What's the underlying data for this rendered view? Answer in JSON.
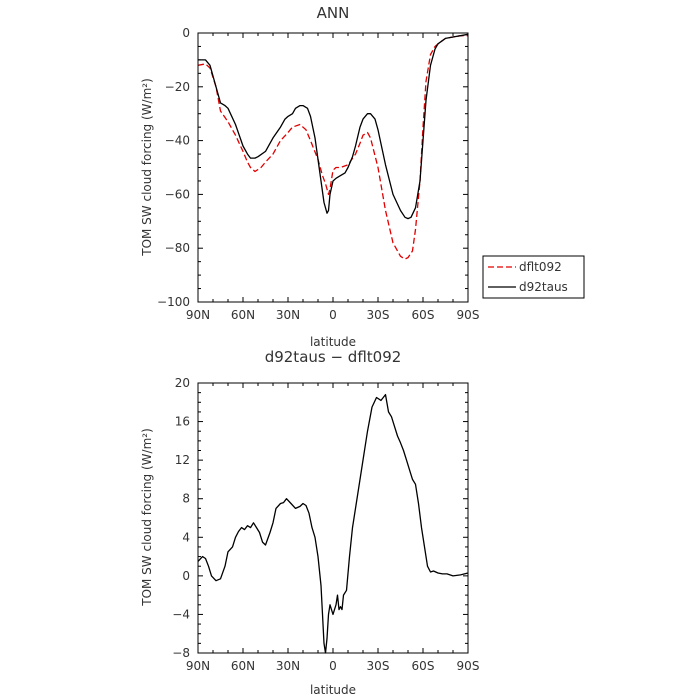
{
  "chart_data": [
    {
      "type": "line",
      "title": "ANN",
      "xlabel": "latitude",
      "ylabel": "TOM SW cloud forcing (W/m²)",
      "x_tick_labels": [
        "90N",
        "60N",
        "30N",
        "0",
        "30S",
        "60S",
        "90S"
      ],
      "x_tick_values": [
        90,
        60,
        30,
        0,
        -30,
        -60,
        -90
      ],
      "xlim": [
        90,
        -90
      ],
      "ylim": [
        -100,
        0
      ],
      "y_ticks": [
        0,
        -20,
        -40,
        -60,
        -80,
        -100
      ],
      "legend_position": "right",
      "series": [
        {
          "name": "dflt092",
          "color": "#e00000",
          "dash": "dashed",
          "x": [
            90,
            85,
            82,
            78,
            75,
            70,
            65,
            60,
            57,
            55,
            52,
            48,
            45,
            40,
            35,
            30,
            27,
            22,
            18,
            15,
            10,
            7,
            5,
            3,
            2,
            0,
            -2,
            -5,
            -10,
            -15,
            -18,
            -20,
            -23,
            -25,
            -30,
            -35,
            -40,
            -45,
            -48,
            -50,
            -53,
            -55,
            -58,
            -60,
            -62,
            -65,
            -68,
            -70,
            -75,
            -80,
            -85,
            -90
          ],
          "y": [
            -12,
            -11.5,
            -13,
            -20,
            -29,
            -33,
            -38,
            -44,
            -48,
            -50,
            -51.5,
            -50,
            -48,
            -45,
            -40,
            -37,
            -35,
            -34,
            -36,
            -40,
            -47,
            -53,
            -56,
            -60,
            -58,
            -51,
            -50,
            -50,
            -49,
            -45,
            -41,
            -38,
            -37,
            -39,
            -50,
            -66,
            -78,
            -83,
            -84,
            -83.5,
            -81,
            -73,
            -55,
            -35,
            -18,
            -8,
            -5,
            -4,
            -2,
            -1.5,
            -1,
            -1
          ]
        },
        {
          "name": "d92taus",
          "color": "#000000",
          "dash": "solid",
          "x": [
            90,
            85,
            82,
            78,
            75,
            72,
            70,
            65,
            60,
            57,
            55,
            52,
            50,
            45,
            42,
            40,
            35,
            32,
            30,
            27,
            25,
            22,
            20,
            17,
            15,
            12,
            10,
            8,
            6,
            4,
            3,
            2,
            0,
            -2,
            -5,
            -8,
            -10,
            -13,
            -15,
            -18,
            -20,
            -23,
            -25,
            -28,
            -30,
            -35,
            -40,
            -45,
            -48,
            -50,
            -52,
            -55,
            -58,
            -60,
            -62,
            -65,
            -68,
            -70,
            -75,
            -80,
            -85,
            -90
          ],
          "y": [
            -10,
            -10,
            -12,
            -20,
            -26,
            -27,
            -28,
            -34,
            -42,
            -45,
            -46.5,
            -46.5,
            -46,
            -44,
            -41,
            -39,
            -35,
            -32,
            -31,
            -30,
            -28,
            -27,
            -27,
            -28,
            -31,
            -39,
            -47,
            -55,
            -63,
            -67,
            -66,
            -60,
            -55,
            -54,
            -53,
            -52,
            -50,
            -46,
            -42,
            -35,
            -32,
            -30,
            -30,
            -32,
            -36,
            -49,
            -60,
            -66,
            -68.5,
            -69,
            -68.5,
            -65,
            -55,
            -40,
            -25,
            -12,
            -6,
            -4,
            -2,
            -1.5,
            -1,
            -0.5
          ]
        }
      ]
    },
    {
      "type": "line",
      "title": "d92taus − dflt092",
      "xlabel": "latitude",
      "ylabel": "TOM SW cloud forcing (W/m²)",
      "x_tick_labels": [
        "90N",
        "60N",
        "30N",
        "0",
        "30S",
        "60S",
        "90S"
      ],
      "x_tick_values": [
        90,
        60,
        30,
        0,
        -30,
        -60,
        -90
      ],
      "xlim": [
        90,
        -90
      ],
      "ylim": [
        -8,
        20
      ],
      "y_ticks": [
        20,
        16,
        12,
        8,
        4,
        0,
        -4,
        -8
      ],
      "series": [
        {
          "color": "#000000",
          "dash": "solid",
          "x": [
            90,
            87,
            85,
            83,
            81,
            78,
            75,
            72,
            70,
            67,
            65,
            63,
            61,
            59,
            57,
            55,
            53,
            51,
            49,
            47,
            45,
            42,
            40,
            38,
            35,
            33,
            31,
            28,
            25,
            22,
            20,
            18,
            16,
            14,
            12,
            10,
            8,
            7,
            6,
            5,
            4,
            3,
            2,
            0,
            -1,
            -2,
            -3,
            -4,
            -5,
            -6,
            -7,
            -9,
            -11,
            -13,
            -15,
            -17,
            -20,
            -23,
            -26,
            -29,
            -32,
            -35,
            -37,
            -39,
            -41,
            -43,
            -45,
            -47,
            -49,
            -51,
            -53,
            -55,
            -57,
            -59,
            -61,
            -63,
            -65,
            -67,
            -70,
            -73,
            -76,
            -80,
            -85,
            -90
          ],
          "y": [
            1.5,
            2,
            1.8,
            1,
            0,
            -0.5,
            -0.3,
            1,
            2.5,
            3,
            4,
            4.6,
            5,
            4.8,
            5.2,
            5,
            5.5,
            5,
            4.5,
            3.5,
            3.2,
            4.5,
            5.5,
            7,
            7.5,
            7.6,
            8,
            7.5,
            7,
            7.2,
            7.5,
            7.3,
            6.5,
            5,
            4,
            2,
            -1,
            -4,
            -7,
            -8,
            -6.5,
            -4,
            -3,
            -4,
            -3.5,
            -3,
            -2,
            -3.5,
            -3.2,
            -3.5,
            -2,
            -1.5,
            2,
            5,
            7,
            9,
            12,
            15,
            17.5,
            18.5,
            18.2,
            18.8,
            17,
            16.5,
            15.5,
            14.5,
            13.8,
            13,
            12,
            11,
            10,
            9.5,
            7.5,
            5,
            3,
            1,
            0.4,
            0.5,
            0.3,
            0.2,
            0.2,
            0,
            0.1,
            0.3
          ]
        }
      ]
    }
  ]
}
